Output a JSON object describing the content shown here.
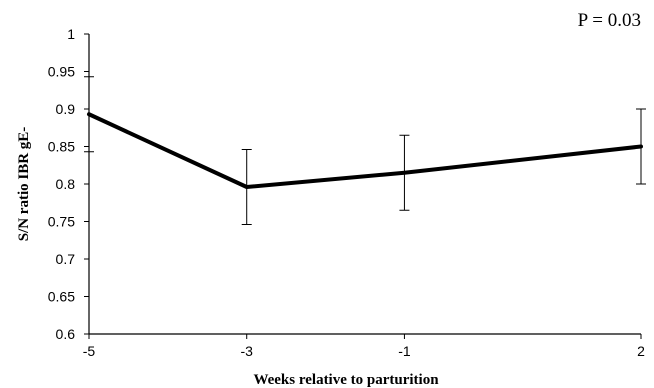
{
  "chart_data": {
    "type": "line",
    "x": [
      -5,
      -3,
      -1,
      2
    ],
    "x_tick_labels": [
      "-5",
      "-3",
      "-1",
      "2"
    ],
    "series": [
      {
        "values": [
          0.893,
          0.796,
          0.815,
          0.85
        ],
        "error": [
          0.05,
          0.05,
          0.05,
          0.05
        ],
        "color": "#000000"
      }
    ],
    "xlabel": "Weeks relative to parturition",
    "ylabel": "S/N ratio IBR gE-",
    "ylim": [
      0.6,
      1.0
    ],
    "y_ticks": [
      0.6,
      0.65,
      0.7,
      0.75,
      0.8,
      0.85,
      0.9,
      0.95,
      1.0
    ],
    "y_tick_labels": [
      "0.6",
      "0.65",
      "0.7",
      "0.75",
      "0.8",
      "0.85",
      "0.9",
      "0.95",
      "1"
    ],
    "annotation": "P = 0.03",
    "grid": false,
    "legend": "none"
  }
}
